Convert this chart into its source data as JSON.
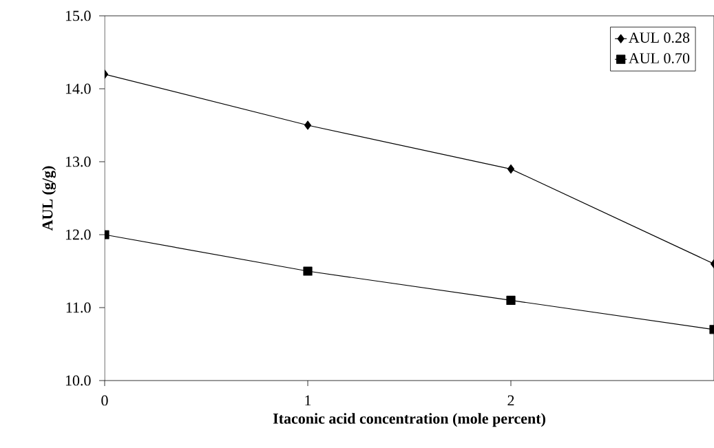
{
  "chart_data": {
    "type": "line",
    "xlabel": "Itaconic acid concentration (mole percent)",
    "ylabel": "AUL (g/g)",
    "x": [
      0,
      1,
      2,
      3
    ],
    "series": [
      {
        "name": "AUL 0.28",
        "color": "#000000",
        "marker": "diamond",
        "values": [
          14.2,
          13.5,
          12.9,
          11.6
        ]
      },
      {
        "name": "AUL 0.70",
        "color": "#000000",
        "marker": "square",
        "values": [
          12.0,
          11.5,
          11.1,
          10.7
        ]
      }
    ],
    "xlim": [
      0,
      3
    ],
    "xticks": [
      0,
      1,
      2
    ],
    "ylim": [
      10,
      15
    ],
    "yticks": [
      {
        "value": 10,
        "label": "10.0"
      },
      {
        "value": 11,
        "label": "11.0"
      },
      {
        "value": 12,
        "label": "12.0"
      },
      {
        "value": 13,
        "label": "13.0"
      },
      {
        "value": 14,
        "label": "14.0"
      },
      {
        "value": 15,
        "label": "15.0"
      }
    ],
    "legend": "top right",
    "grid": false,
    "line_style": "solid"
  }
}
